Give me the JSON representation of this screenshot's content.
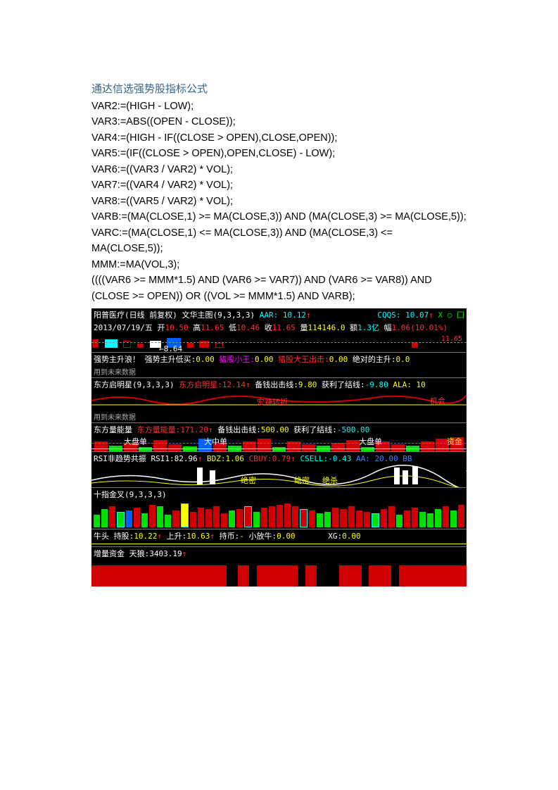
{
  "title": "通达信选强势股指标公式",
  "formula": "VAR2:=(HIGH - LOW);\nVAR3:=ABS((OPEN - CLOSE));\nVAR4:=(HIGH - IF((CLOSE > OPEN),CLOSE,OPEN));\nVAR5:=(IF((CLOSE > OPEN),OPEN,CLOSE) - LOW);\nVAR6:=((VAR3 / VAR2) * VOL);\nVAR7:=((VAR4 / VAR2) * VOL);\nVAR8:=((VAR5 / VAR2) * VOL);\nVARB:=(MA(CLOSE,1) >= MA(CLOSE,3)) AND (MA(CLOSE,3) >= MA(CLOSE,5));\nVARC:=(MA(CLOSE,1) <= MA(CLOSE,3)) AND (MA(CLOSE,3) <= MA(CLOSE,5));\nMMM:=MA(VOL,3);\n((((VAR6 >= MMM*1.5) AND (VAR6 >= VAR7)) AND (VAR6 >= VAR8)) AND (CLOSE >= OPEN)) OR ((VOL >= MMM*1.5) AND VARB);",
  "row1a": {
    "name": "阳普医疗(日线 前复权) 文华主图(9,3,3,3)",
    "aar": "AAR: 10.12",
    "aar_ar": "↑",
    "cqqs": "CQQS: 10.07",
    "cqqs_ar": "↑",
    "tail": "X ○ 囗"
  },
  "row1b": {
    "date": "2013/07/19/五",
    "open_l": "开",
    "open": "10.50",
    "high_l": "高",
    "high": "11.65",
    "low_l": "低",
    "low": "10.46",
    "close_l": "收",
    "close": "11.65",
    "vol_l": "量",
    "vol": "114146.0",
    "amt_l": "额",
    "amt": "1.3亿",
    "chg_l": "幅",
    "chg": "1.06(10.01%)"
  },
  "row1c": {
    "price": "11.65",
    "arrow": "←8.64"
  },
  "row2": {
    "l1": "强势主升浪！",
    "l2": "强势主升低买:",
    "v2": "0.00",
    "l3": "猎股小王:",
    "v3": "0.00",
    "l4": "猎股大王出击:",
    "v4": "0.00",
    "l5": "绝对的主升:",
    "v5": "0.0"
  },
  "row3": {
    "lead": "用到未来数据",
    "name": "东方启明星(9,3,3,3)",
    "s1": "东方启明星:",
    "v1": "12.14",
    "ar1": "↑",
    "s2": "备钱出击线:",
    "v2": "9.80",
    "s3": "获利了结线:",
    "v3": "-9.80",
    "s4": "ALA: 10"
  },
  "row3mid": "宏神转折",
  "row4": {
    "lead": "用到未来数据",
    "name": "东方量能量",
    "s1": "东方量能量:",
    "v1": "171.20",
    "ar1": "↑",
    "s2": "备钱出击线:",
    "v2": "500.00",
    "s3": "获利了结线:",
    "v3": "-500.00"
  },
  "row4lbl": {
    "a": "大盘单",
    "b": "大中单",
    "c": "大盘单",
    "d": "资金"
  },
  "row5": {
    "name": "RSI非趋势共振",
    "s1": "RSI1:",
    "v1": "82.96",
    "ar1": "↑",
    "s2": "BDZ:",
    "v2": "1.06",
    "s3": "CBUY:",
    "v3": "0.79",
    "ar3": "↑",
    "s4": "CSELL:",
    "v4": "-0.43",
    "s5": "AA: 20.00 BB"
  },
  "row5lbl": {
    "a": "绝密",
    "b": "绝密",
    "c": "绝杀"
  },
  "row6": {
    "name": "十指金叉(9,3,3,3)"
  },
  "row6bars": {
    "colors": [
      "#00e000",
      "#00e000",
      "#d00000",
      "#00e000",
      "#0060ff",
      "#d00000",
      "#00e000",
      "#d00000",
      "#00e000",
      "#00e000",
      "#d00000",
      "#ffff00",
      "#d00000",
      "#d00000",
      "#d00000",
      "#d00000",
      "#d00000",
      "#00e000",
      "#d00000",
      "#d00000",
      "#00e000",
      "#d00000",
      "#d00000",
      "#d00000",
      "#d00000",
      "#d00000",
      "#d00000",
      "#d00000",
      "#00e000",
      "#00e000",
      "#d00000",
      "#d00000",
      "#d00000",
      "#d00000",
      "#d00000",
      "#00e000",
      "#d00000",
      "#d00000",
      "#00e000",
      "#d00000",
      "#d00000",
      "#00e000",
      "#00e000",
      "#00e000",
      "#d00000",
      "#00e000",
      "#d00000"
    ],
    "heights": [
      18,
      26,
      30,
      22,
      24,
      28,
      20,
      32,
      30,
      18,
      24,
      34,
      22,
      28,
      26,
      30,
      20,
      24,
      26,
      30,
      22,
      28,
      30,
      32,
      34,
      30,
      26,
      24,
      20,
      22,
      28,
      26,
      30,
      24,
      22,
      20,
      26,
      30,
      18,
      24,
      28,
      22,
      20,
      26,
      30,
      24,
      32
    ],
    "outline": [
      3,
      11,
      19,
      26,
      35
    ],
    "outline_color": "#00ffff"
  },
  "row7": {
    "name": "牛头",
    "s1": "持股:",
    "v1": "10.22",
    "ar1": "↑",
    "s2": "上升:",
    "v2": "10.63",
    "ar2": "↑",
    "s3": "持币:",
    "v3": "-",
    "s4": "小放牛:",
    "v4": "0.00",
    "s5": "XG:",
    "v5": "0.00"
  },
  "row8": {
    "name": "增量资金",
    "s1": "天狼:",
    "v1": "3403.19",
    "ar1": "↑"
  },
  "row8gaps": [
    {
      "l": 36,
      "w": 3
    },
    {
      "l": 42,
      "w": 2
    },
    {
      "l": 55,
      "w": 2
    },
    {
      "l": 60,
      "w": 6
    },
    {
      "l": 72,
      "w": 2
    },
    {
      "l": 80,
      "w": 2
    }
  ],
  "colors": {
    "bg": "#000",
    "red": "#d00000",
    "green": "#00e000",
    "yellow": "#ffff00",
    "cyan": "#00ffff",
    "white": "#fff",
    "magenta": "#ff00ff"
  }
}
